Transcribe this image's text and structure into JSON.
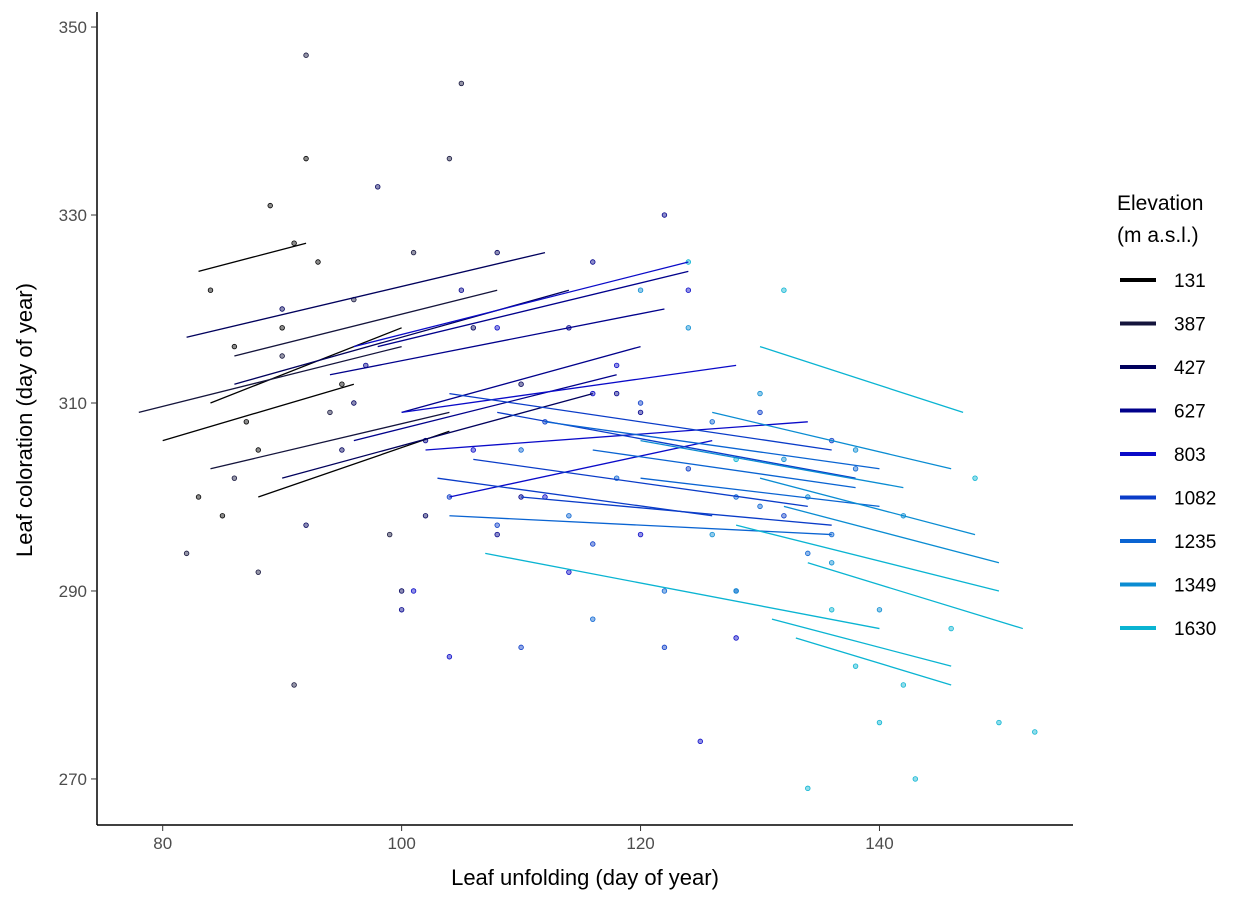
{
  "chart_data": {
    "type": "scatter",
    "x_label": "Leaf unfolding (day of year)",
    "y_label": "Leaf coloration (day of year)",
    "legend_title": [
      "Elevation",
      "(m a.s.l.)"
    ],
    "legend_position": "right",
    "grid": false,
    "xlim": [
      74.5,
      156.2
    ],
    "ylim": [
      265.1,
      351.6
    ],
    "xticks": [
      80,
      100,
      120,
      140
    ],
    "yticks": [
      270,
      290,
      310,
      330,
      350
    ],
    "series": [
      {
        "name": "131",
        "color": "#000000",
        "x": [
          84,
          86,
          88,
          90,
          92,
          85,
          89,
          93,
          95,
          87,
          91,
          83
        ],
        "values": [
          322,
          316,
          305,
          318,
          336,
          298,
          331,
          325,
          312,
          308,
          327,
          300
        ],
        "fits": [
          {
            "x": [
              83,
              92
            ],
            "values": [
              324,
              327
            ]
          },
          {
            "x": [
              84,
              100
            ],
            "values": [
              310,
              318
            ]
          },
          {
            "x": [
              80,
              96
            ],
            "values": [
              306,
              312
            ]
          },
          {
            "x": [
              88,
              104
            ],
            "values": [
              300,
              307
            ]
          }
        ]
      },
      {
        "name": "387",
        "color": "#14143c",
        "x": [
          82,
          86,
          90,
          92,
          96,
          99,
          104,
          88,
          94,
          101,
          91,
          105
        ],
        "values": [
          294,
          302,
          315,
          347,
          321,
          296,
          336,
          292,
          309,
          326,
          280,
          344
        ],
        "fits": [
          {
            "x": [
              78,
              100
            ],
            "values": [
              309,
              316
            ]
          },
          {
            "x": [
              86,
              108
            ],
            "values": [
              315,
              322
            ]
          },
          {
            "x": [
              84,
              104
            ],
            "values": [
              303,
              309
            ]
          }
        ]
      },
      {
        "name": "427",
        "color": "#00005c",
        "x": [
          90,
          95,
          98,
          102,
          106,
          110,
          92,
          100,
          108,
          96
        ],
        "values": [
          320,
          305,
          333,
          298,
          318,
          312,
          297,
          290,
          326,
          310
        ],
        "fits": [
          {
            "x": [
              86,
              114
            ],
            "values": [
              312,
              322
            ]
          },
          {
            "x": [
              82,
              112
            ],
            "values": [
              317,
              326
            ]
          },
          {
            "x": [
              90,
              116
            ],
            "values": [
              302,
              311
            ]
          }
        ]
      },
      {
        "name": "627",
        "color": "#00008b",
        "x": [
          97,
          102,
          105,
          110,
          114,
          118,
          122,
          100,
          108,
          116,
          120
        ],
        "values": [
          314,
          306,
          322,
          300,
          318,
          311,
          330,
          288,
          296,
          325,
          309
        ],
        "fits": [
          {
            "x": [
              94,
              122
            ],
            "values": [
              313,
              320
            ]
          },
          {
            "x": [
              98,
              124
            ],
            "values": [
              316,
              324
            ]
          },
          {
            "x": [
              96,
              118
            ],
            "values": [
              306,
              313
            ]
          },
          {
            "x": [
              100,
              120
            ],
            "values": [
              309,
              316
            ]
          }
        ]
      },
      {
        "name": "803",
        "color": "#0a0ac8",
        "x": [
          101,
          104,
          108,
          112,
          116,
          120,
          124,
          128,
          106,
          114,
          118,
          125
        ],
        "values": [
          290,
          283,
          318,
          300,
          311,
          296,
          322,
          285,
          305,
          292,
          314,
          274
        ],
        "fits": [
          {
            "x": [
              96,
              124
            ],
            "values": [
              316,
              325
            ]
          },
          {
            "x": [
              100,
              128
            ],
            "values": [
              309,
              314
            ]
          },
          {
            "x": [
              104,
              126
            ],
            "values": [
              300,
              306
            ]
          },
          {
            "x": [
              102,
              134
            ],
            "values": [
              305,
              308
            ]
          }
        ]
      },
      {
        "name": "1082",
        "color": "#0a3cc8",
        "x": [
          104,
          108,
          112,
          116,
          120,
          124,
          128,
          132,
          136,
          110,
          122,
          130
        ],
        "values": [
          300,
          297,
          308,
          295,
          310,
          303,
          290,
          298,
          306,
          284,
          284,
          309
        ],
        "fits": [
          {
            "x": [
              104,
              136
            ],
            "values": [
              311,
              305
            ]
          },
          {
            "x": [
              108,
              138
            ],
            "values": [
              309,
              302
            ]
          },
          {
            "x": [
              106,
              134
            ],
            "values": [
              304,
              299
            ]
          },
          {
            "x": [
              110,
              136
            ],
            "values": [
              300,
              297
            ]
          },
          {
            "x": [
              103,
              126
            ],
            "values": [
              302,
              298
            ]
          }
        ]
      },
      {
        "name": "1235",
        "color": "#0a64d2",
        "x": [
          110,
          114,
          118,
          122,
          126,
          130,
          134,
          138,
          116,
          128,
          136
        ],
        "values": [
          305,
          298,
          302,
          290,
          308,
          299,
          294,
          303,
          287,
          300,
          296
        ],
        "fits": [
          {
            "x": [
              112,
              140
            ],
            "values": [
              308,
              303
            ]
          },
          {
            "x": [
              116,
              138
            ],
            "values": [
              305,
              301
            ]
          },
          {
            "x": [
              104,
              136
            ],
            "values": [
              298,
              296
            ]
          },
          {
            "x": [
              120,
              140
            ],
            "values": [
              302,
              299
            ]
          }
        ]
      },
      {
        "name": "1349",
        "color": "#0a8cd2",
        "x": [
          120,
          124,
          126,
          130,
          134,
          138,
          142,
          128,
          132,
          136,
          140
        ],
        "values": [
          322,
          318,
          296,
          311,
          300,
          305,
          298,
          290,
          304,
          293,
          288
        ],
        "fits": [
          {
            "x": [
              126,
              146
            ],
            "values": [
              309,
              303
            ]
          },
          {
            "x": [
              130,
              148
            ],
            "values": [
              302,
              296
            ]
          },
          {
            "x": [
              120,
              142
            ],
            "values": [
              306,
              301
            ]
          },
          {
            "x": [
              132,
              150
            ],
            "values": [
              299,
              293
            ]
          }
        ]
      },
      {
        "name": "1630",
        "color": "#0ab4d2",
        "x": [
          124,
          128,
          132,
          136,
          140,
          143,
          146,
          150,
          153,
          138,
          148,
          134,
          142
        ],
        "values": [
          325,
          304,
          322,
          288,
          276,
          270,
          286,
          276,
          275,
          282,
          302,
          269,
          280
        ],
        "fits": [
          {
            "x": [
              107,
              140
            ],
            "values": [
              294,
              286
            ]
          },
          {
            "x": [
              130,
              147
            ],
            "values": [
              316,
              309
            ]
          },
          {
            "x": [
              128,
              150
            ],
            "values": [
              297,
              290
            ]
          },
          {
            "x": [
              134,
              152
            ],
            "values": [
              293,
              286
            ]
          },
          {
            "x": [
              131,
              146
            ],
            "values": [
              287,
              282
            ]
          },
          {
            "x": [
              133,
              146
            ],
            "values": [
              285,
              280
            ]
          }
        ]
      }
    ]
  }
}
